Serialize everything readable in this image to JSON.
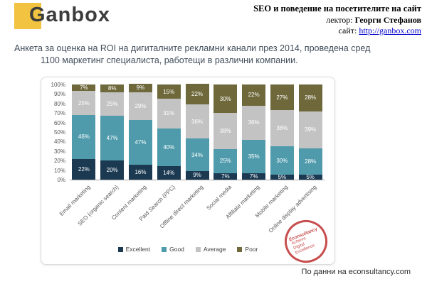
{
  "header": {
    "logo_text": "Ganbox",
    "logo_accent_color": "#F2C340",
    "course_title": "SEO и поведение на посетителите на сайт",
    "lecturer_label": "лектор: ",
    "lecturer_name": "Георги Стефанов",
    "site_label": "сайт: ",
    "site_url": "http://ganbox.com"
  },
  "intro": {
    "line1": "Анкета за оценка на ROI на дигиталните рекламни канали през 2014, проведена сред",
    "line2": "1100 маркетинг специалиста, работещи в различни компании."
  },
  "chart_data": {
    "type": "bar",
    "stacked": true,
    "categories": [
      "Email marketing",
      "SEO (organic search)",
      "Content marketing",
      "Paid Search (PPC)",
      "Offline direct marketing",
      "Social media",
      "Affiliate marketing",
      "Mobile marketing",
      "Online display advertising"
    ],
    "series": [
      {
        "name": "Excellent",
        "color": "#1B3A52",
        "values": [
          22,
          20,
          16,
          14,
          9,
          7,
          7,
          5,
          5
        ]
      },
      {
        "name": "Good",
        "color": "#4F9BAC",
        "values": [
          46,
          47,
          47,
          40,
          34,
          25,
          35,
          30,
          28
        ]
      },
      {
        "name": "Average",
        "color": "#C3C3C3",
        "values": [
          25,
          25,
          29,
          31,
          36,
          38,
          36,
          38,
          39
        ]
      },
      {
        "name": "Poor",
        "color": "#6E683B",
        "values": [
          7,
          8,
          9,
          15,
          22,
          30,
          22,
          27,
          28
        ]
      }
    ],
    "y_ticks": [
      "100%",
      "90%",
      "80%",
      "70%",
      "60%",
      "50%",
      "40%",
      "30%",
      "20%",
      "10%",
      "0%"
    ],
    "ylim": [
      0,
      100
    ],
    "value_suffix": "%",
    "legend_position": "bottom",
    "grid": false
  },
  "stamp": {
    "line1": "Econsultancy",
    "line2": "Achieve",
    "line3": "Digital",
    "line4": "Excellence",
    "color": "#c23b3b"
  },
  "footer": {
    "source": "По данни на econsultancy.com"
  }
}
